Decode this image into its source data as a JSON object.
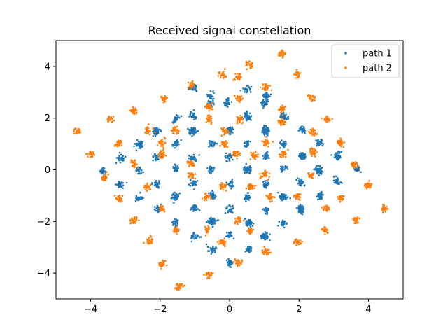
{
  "chart_data": {
    "type": "scatter",
    "title": "Received signal constellation",
    "xlabel": "",
    "ylabel": "",
    "xlim": [
      -5.0,
      5.0
    ],
    "ylim": [
      -5.0,
      5.0
    ],
    "xticks": [
      -4,
      -2,
      0,
      2,
      4
    ],
    "yticks": [
      -4,
      -2,
      0,
      2,
      4
    ],
    "xtick_labels": [
      "−4",
      "−2",
      "0",
      "2",
      "4"
    ],
    "ytick_labels": [
      "−4",
      "−2",
      "0",
      "2",
      "4"
    ],
    "grid": false,
    "legend_position": "top-right",
    "series": [
      {
        "name": "path 1",
        "color": "#1f77b4",
        "points": [
          [
            -1.05,
            3.15
          ],
          [
            -0.55,
            2.85
          ],
          [
            0.5,
            3.1
          ],
          [
            1.05,
            2.85
          ],
          [
            -1.05,
            2.1
          ],
          [
            -0.55,
            2.55
          ],
          [
            -0.05,
            2.6
          ],
          [
            0.5,
            2.1
          ],
          [
            1.0,
            2.6
          ],
          [
            1.55,
            2.1
          ],
          [
            -2.1,
            1.5
          ],
          [
            -1.55,
            1.95
          ],
          [
            -1.05,
            1.5
          ],
          [
            0.0,
            1.55
          ],
          [
            0.55,
            2.05
          ],
          [
            1.05,
            1.55
          ],
          [
            1.55,
            2.05
          ],
          [
            2.1,
            1.55
          ],
          [
            -2.6,
            1.0
          ],
          [
            -2.1,
            1.45
          ],
          [
            -1.55,
            1.0
          ],
          [
            -1.05,
            1.5
          ],
          [
            -0.5,
            1.0
          ],
          [
            0.0,
            1.5
          ],
          [
            0.5,
            1.0
          ],
          [
            1.05,
            1.5
          ],
          [
            1.55,
            1.0
          ],
          [
            2.1,
            0.55
          ],
          [
            2.6,
            1.05
          ],
          [
            3.1,
            0.55
          ],
          [
            -3.1,
            0.45
          ],
          [
            -2.6,
            0.95
          ],
          [
            -2.1,
            0.5
          ],
          [
            -1.55,
            0.05
          ],
          [
            -1.05,
            0.45
          ],
          [
            -0.55,
            0.0
          ],
          [
            0.0,
            0.5
          ],
          [
            0.55,
            0.0
          ],
          [
            1.05,
            0.5
          ],
          [
            1.55,
            0.05
          ],
          [
            2.1,
            0.55
          ],
          [
            2.55,
            0.0
          ],
          [
            3.1,
            0.55
          ],
          [
            -3.65,
            -0.05
          ],
          [
            -3.15,
            -0.6
          ],
          [
            -2.6,
            0.0
          ],
          [
            -2.1,
            -0.55
          ],
          [
            -1.55,
            -1.05
          ],
          [
            -1.05,
            -0.55
          ],
          [
            -0.5,
            -1.0
          ],
          [
            0.05,
            -0.55
          ],
          [
            0.5,
            0.0
          ],
          [
            0.5,
            -1.05
          ],
          [
            1.05,
            -0.55
          ],
          [
            1.55,
            -1.05
          ],
          [
            2.05,
            -0.5
          ],
          [
            2.6,
            -0.05
          ],
          [
            3.1,
            -0.45
          ],
          [
            3.65,
            0.05
          ],
          [
            -2.6,
            -1.1
          ],
          [
            -2.05,
            -1.55
          ],
          [
            -1.55,
            -1.05
          ],
          [
            -1.0,
            -1.5
          ],
          [
            -0.5,
            -2.0
          ],
          [
            0.0,
            -1.55
          ],
          [
            0.55,
            -2.05
          ],
          [
            1.05,
            -1.55
          ],
          [
            1.55,
            -1.05
          ],
          [
            2.05,
            -1.55
          ],
          [
            2.6,
            -1.0
          ],
          [
            -1.55,
            -2.05
          ],
          [
            -1.0,
            -2.6
          ],
          [
            -0.5,
            -2.0
          ],
          [
            0.0,
            -2.5
          ],
          [
            0.55,
            -2.05
          ],
          [
            1.0,
            -2.6
          ],
          [
            1.55,
            -2.1
          ],
          [
            2.05,
            -1.5
          ],
          [
            -0.5,
            -3.1
          ],
          [
            0.0,
            -3.6
          ],
          [
            0.55,
            -3.1
          ],
          [
            1.05,
            -2.55
          ]
        ]
      },
      {
        "name": "path 2",
        "color": "#ff7f0e",
        "points": [
          [
            1.5,
            4.5
          ],
          [
            0.6,
            4.05
          ],
          [
            1.95,
            3.7
          ],
          [
            -0.2,
            3.65
          ],
          [
            0.25,
            3.6
          ],
          [
            -1.1,
            3.25
          ],
          [
            1.05,
            3.2
          ],
          [
            0.25,
            2.75
          ],
          [
            -1.9,
            2.75
          ],
          [
            2.35,
            2.8
          ],
          [
            -0.6,
            2.45
          ],
          [
            1.5,
            2.35
          ],
          [
            -3.45,
            1.95
          ],
          [
            -2.75,
            2.3
          ],
          [
            -0.6,
            1.95
          ],
          [
            0.3,
            1.95
          ],
          [
            1.5,
            1.85
          ],
          [
            2.8,
            1.95
          ],
          [
            -4.4,
            1.5
          ],
          [
            -2.35,
            1.5
          ],
          [
            -1.55,
            1.55
          ],
          [
            -0.15,
            1.5
          ],
          [
            1.05,
            1.05
          ],
          [
            2.4,
            1.45
          ],
          [
            3.2,
            1.05
          ],
          [
            -3.2,
            1.0
          ],
          [
            -1.95,
            1.05
          ],
          [
            -0.15,
            1.0
          ],
          [
            -4.0,
            0.6
          ],
          [
            -1.95,
            0.6
          ],
          [
            0.2,
            0.6
          ],
          [
            2.4,
            0.7
          ],
          [
            -2.75,
            0.2
          ],
          [
            -1.1,
            0.25
          ],
          [
            1.55,
            0.6
          ],
          [
            3.6,
            0.2
          ],
          [
            -3.6,
            -0.3
          ],
          [
            -2.35,
            -0.65
          ],
          [
            -1.1,
            -0.2
          ],
          [
            0.7,
            0.55
          ],
          [
            -0.2,
            -0.65
          ],
          [
            1.0,
            -0.2
          ],
          [
            2.35,
            -0.2
          ],
          [
            4.0,
            -0.6
          ],
          [
            3.2,
            -1.1
          ],
          [
            -3.2,
            -1.1
          ],
          [
            -1.95,
            -1.5
          ],
          [
            -0.65,
            -1.05
          ],
          [
            0.6,
            -0.65
          ],
          [
            1.95,
            -1.05
          ],
          [
            4.45,
            -1.5
          ],
          [
            2.8,
            -1.5
          ],
          [
            -2.75,
            -1.95
          ],
          [
            -1.55,
            -2.35
          ],
          [
            -0.65,
            -2.35
          ],
          [
            0.25,
            -1.95
          ],
          [
            1.15,
            -1.05
          ],
          [
            3.65,
            -1.95
          ],
          [
            2.75,
            -2.35
          ],
          [
            -2.3,
            -2.75
          ],
          [
            -0.2,
            -2.8
          ],
          [
            0.6,
            -2.35
          ],
          [
            1.95,
            -2.8
          ],
          [
            -1.95,
            -3.65
          ],
          [
            0.25,
            -3.6
          ],
          [
            1.05,
            -3.2
          ],
          [
            -0.6,
            -4.05
          ],
          [
            -1.45,
            -4.5
          ]
        ]
      }
    ]
  }
}
